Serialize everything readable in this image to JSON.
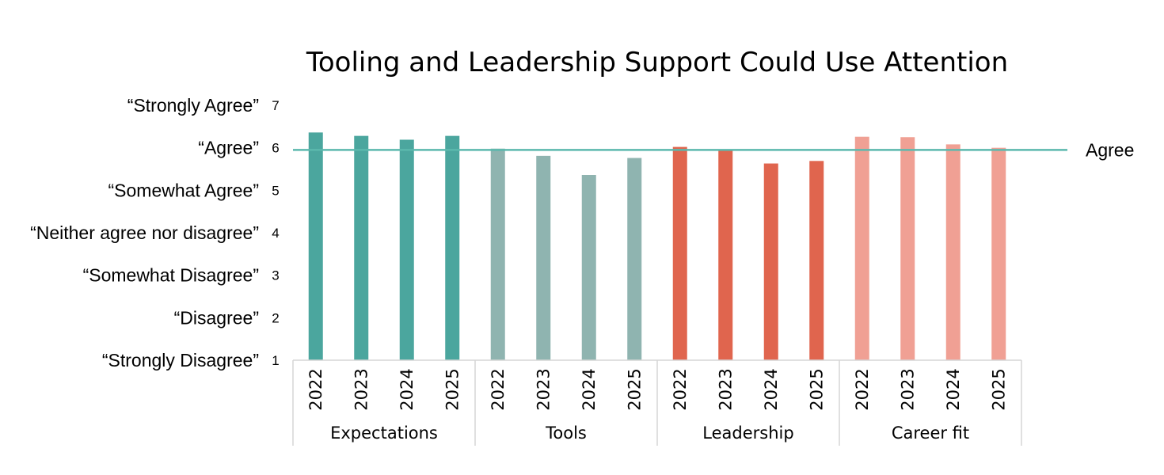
{
  "chart_data": {
    "type": "bar",
    "title": "Tooling and Leadership Support Could Use Attention",
    "ylim": [
      1,
      7
    ],
    "y_ticks": [
      {
        "value": 7,
        "tick": "7",
        "label": "“Strongly Agree”"
      },
      {
        "value": 6,
        "tick": "6",
        "label": "“Agree”"
      },
      {
        "value": 5,
        "tick": "5",
        "label": "“Somewhat Agree”"
      },
      {
        "value": 4,
        "tick": "4",
        "label": "“Neither agree nor disagree”"
      },
      {
        "value": 3,
        "tick": "3",
        "label": "“Somewhat Disagree”"
      },
      {
        "value": 2,
        "tick": "2",
        "label": "“Disagree”"
      },
      {
        "value": 1,
        "tick": "1",
        "label": "“Strongly Disagree”"
      }
    ],
    "categories": [
      "2022",
      "2023",
      "2024",
      "2025"
    ],
    "groups": [
      {
        "name": "Expectations",
        "color": "#4ba69e",
        "values": [
          6.36,
          6.28,
          6.19,
          6.28
        ]
      },
      {
        "name": "Tools",
        "color": "#8fb4b0",
        "values": [
          5.98,
          5.81,
          5.36,
          5.76
        ]
      },
      {
        "name": "Leadership",
        "color": "#e0654e",
        "values": [
          6.02,
          5.95,
          5.63,
          5.69
        ]
      },
      {
        "name": "Career fit",
        "color": "#f0a094",
        "values": [
          6.26,
          6.25,
          6.08,
          6.0
        ]
      }
    ],
    "reference_line": {
      "value": 5.95,
      "label": "Agree",
      "color": "#5bb8ad"
    },
    "grid": false
  }
}
